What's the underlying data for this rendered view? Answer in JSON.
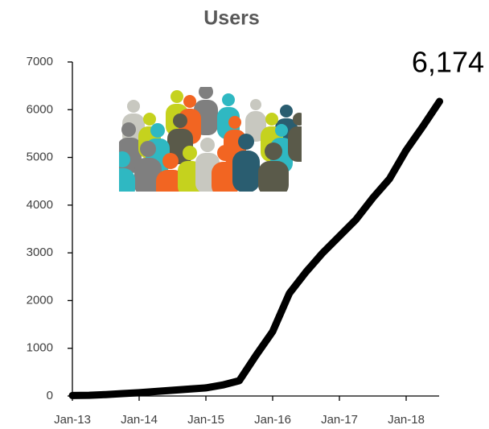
{
  "chart_data": {
    "type": "line",
    "title": "Users",
    "categories": [
      "Jan-13",
      null,
      null,
      null,
      "Jan-14",
      null,
      null,
      null,
      "Jan-15",
      null,
      null,
      null,
      "Jan-16",
      null,
      null,
      null,
      "Jan-17",
      null,
      null,
      null,
      "Jan-18",
      null,
      null
    ],
    "series": [
      {
        "name": "Users",
        "color": "#000000",
        "values": [
          10,
          15,
          30,
          50,
          70,
          95,
          120,
          145,
          170,
          230,
          320,
          850,
          1350,
          2150,
          2600,
          3000,
          3350,
          3700,
          4150,
          4550,
          5150,
          5650,
          6174
        ],
        "value_labels": [
          null,
          null,
          null,
          null,
          null,
          null,
          null,
          null,
          null,
          null,
          null,
          null,
          null,
          null,
          null,
          null,
          null,
          null,
          null,
          null,
          null,
          null,
          "6,174"
        ]
      }
    ],
    "ylim": [
      0,
      7000
    ],
    "yticks": [
      0,
      1000,
      2000,
      3000,
      4000,
      5000,
      6000,
      7000
    ],
    "grid": false
  }
}
